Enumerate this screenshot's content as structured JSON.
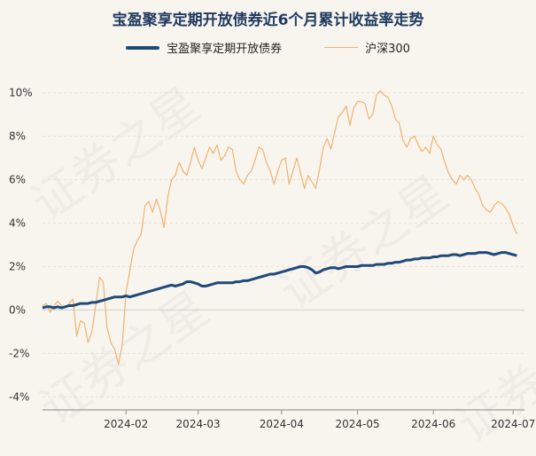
{
  "chart_data": {
    "type": "line",
    "title": "宝盈聚享定期开放债券近6个月累计收益率走势",
    "legend_placement": "top-center",
    "grid": true,
    "y_ticks": [
      "10%",
      "8%",
      "6%",
      "4%",
      "2%",
      "0%",
      "-2%",
      "-4%"
    ],
    "y_tick_values": [
      10,
      8,
      6,
      4,
      2,
      0,
      -2,
      -4
    ],
    "ylim": [
      -4.6,
      10.6
    ],
    "x_tick_labels": [
      "2024-02",
      "2024-03",
      "2024-04",
      "2024-05",
      "2024-06",
      "2024-07"
    ],
    "x_tick_positions": [
      22,
      41,
      63,
      83,
      103,
      124
    ],
    "xlim": [
      0,
      127
    ],
    "watermark": "证券之星",
    "series": [
      {
        "name": "宝盈聚享定期开放债券",
        "color": "#1f4a78",
        "values": [
          0.1,
          0.15,
          0.15,
          0.1,
          0.15,
          0.1,
          0.15,
          0.2,
          0.2,
          0.25,
          0.3,
          0.3,
          0.3,
          0.35,
          0.35,
          0.4,
          0.45,
          0.5,
          0.55,
          0.6,
          0.6,
          0.6,
          0.65,
          0.6,
          0.65,
          0.7,
          0.75,
          0.8,
          0.85,
          0.9,
          0.95,
          1.0,
          1.05,
          1.1,
          1.15,
          1.1,
          1.15,
          1.2,
          1.3,
          1.3,
          1.25,
          1.2,
          1.1,
          1.1,
          1.15,
          1.2,
          1.25,
          1.25,
          1.25,
          1.25,
          1.25,
          1.3,
          1.3,
          1.35,
          1.35,
          1.4,
          1.45,
          1.5,
          1.55,
          1.6,
          1.65,
          1.65,
          1.7,
          1.75,
          1.8,
          1.85,
          1.9,
          1.95,
          2.0,
          2.0,
          1.95,
          1.85,
          1.7,
          1.75,
          1.85,
          1.9,
          1.95,
          1.95,
          1.9,
          1.95,
          2.0,
          2.0,
          2.0,
          2.0,
          2.05,
          2.05,
          2.05,
          2.05,
          2.1,
          2.1,
          2.1,
          2.15,
          2.15,
          2.2,
          2.2,
          2.25,
          2.3,
          2.3,
          2.35,
          2.35,
          2.4,
          2.4,
          2.4,
          2.45,
          2.45,
          2.5,
          2.5,
          2.5,
          2.55,
          2.55,
          2.5,
          2.55,
          2.6,
          2.6,
          2.6,
          2.65,
          2.65,
          2.65,
          2.6,
          2.55,
          2.6,
          2.65,
          2.65,
          2.6,
          2.55,
          2.5
        ]
      },
      {
        "name": "沪深300",
        "color": "#f0b272",
        "values": [
          0.2,
          0.3,
          -0.1,
          0.2,
          0.4,
          0.2,
          0.1,
          0.3,
          0.5,
          -1.2,
          -0.5,
          -0.6,
          -1.5,
          -1.0,
          0.2,
          1.5,
          1.3,
          -0.8,
          -1.5,
          -1.8,
          -2.5,
          -1.6,
          0.8,
          1.8,
          2.8,
          3.2,
          3.5,
          4.8,
          5.0,
          4.5,
          5.1,
          4.6,
          3.8,
          5.2,
          6.0,
          6.2,
          6.8,
          6.4,
          6.2,
          6.8,
          7.5,
          6.9,
          6.5,
          7.0,
          7.5,
          7.2,
          7.6,
          6.9,
          7.1,
          7.5,
          7.4,
          6.4,
          6.0,
          5.8,
          6.2,
          6.4,
          6.9,
          7.5,
          7.4,
          6.8,
          6.4,
          5.8,
          6.4,
          6.9,
          7.0,
          5.8,
          6.4,
          7.0,
          6.3,
          5.6,
          6.2,
          5.9,
          5.6,
          6.5,
          7.5,
          7.9,
          7.4,
          8.2,
          8.9,
          9.1,
          9.4,
          8.5,
          9.3,
          9.6,
          9.6,
          9.5,
          8.8,
          9.0,
          9.9,
          10.1,
          9.9,
          9.8,
          9.4,
          8.8,
          8.6,
          7.8,
          7.5,
          7.9,
          8.0,
          7.6,
          7.3,
          7.5,
          7.2,
          8.0,
          7.6,
          7.4,
          6.8,
          6.3,
          6.0,
          5.8,
          6.2,
          6.0,
          6.2,
          6.0,
          5.6,
          5.3,
          4.8,
          4.6,
          4.5,
          4.8,
          5.0,
          4.9,
          4.7,
          4.4,
          3.9,
          3.5
        ]
      }
    ]
  }
}
